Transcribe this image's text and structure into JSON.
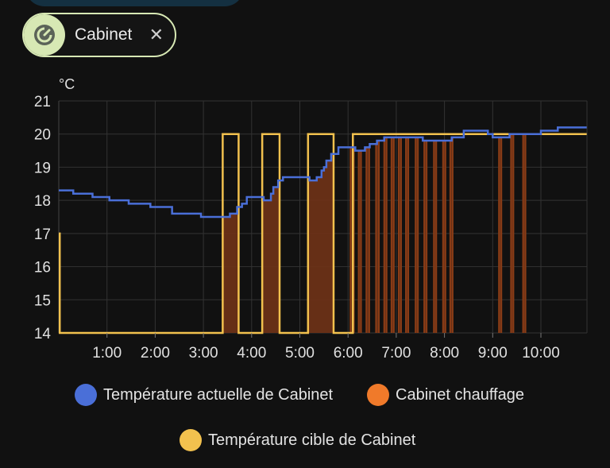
{
  "chip": {
    "label": "Cabinet",
    "close_symbol": "✕",
    "icon": "thermostat-icon",
    "accent": "#d7e8b4"
  },
  "chart_data": {
    "type": "line",
    "ylabel": "°C",
    "ylim": [
      14,
      21
    ],
    "xlim": [
      0,
      11
    ],
    "x_unit": "hours",
    "y_ticks": [
      "14",
      "15",
      "16",
      "17",
      "18",
      "19",
      "20",
      "21"
    ],
    "x_ticks": [
      {
        "t": 1,
        "label": "1:00"
      },
      {
        "t": 2,
        "label": "2:00"
      },
      {
        "t": 3,
        "label": "3:00"
      },
      {
        "t": 4,
        "label": "4:00"
      },
      {
        "t": 5,
        "label": "5:00"
      },
      {
        "t": 6,
        "label": "6:00"
      },
      {
        "t": 7,
        "label": "7:00"
      },
      {
        "t": 8,
        "label": "8:00"
      },
      {
        "t": 9,
        "label": "9:00"
      },
      {
        "t": 10,
        "label": "10:00"
      }
    ],
    "grid": true,
    "series": [
      {
        "name": "Température actuelle de Cabinet",
        "color": "#4a6fd8",
        "step": true,
        "points": [
          [
            0,
            18.3
          ],
          [
            0.3,
            18.2
          ],
          [
            0.7,
            18.1
          ],
          [
            1.05,
            18.0
          ],
          [
            1.45,
            17.9
          ],
          [
            1.9,
            17.8
          ],
          [
            2.35,
            17.6
          ],
          [
            2.95,
            17.5
          ],
          [
            3.55,
            17.6
          ],
          [
            3.7,
            17.8
          ],
          [
            3.8,
            17.9
          ],
          [
            3.9,
            18.1
          ],
          [
            4.25,
            18.0
          ],
          [
            4.4,
            18.2
          ],
          [
            4.45,
            18.4
          ],
          [
            4.55,
            18.6
          ],
          [
            4.65,
            18.7
          ],
          [
            5.2,
            18.6
          ],
          [
            5.35,
            18.7
          ],
          [
            5.45,
            18.9
          ],
          [
            5.5,
            19.0
          ],
          [
            5.55,
            19.2
          ],
          [
            5.65,
            19.4
          ],
          [
            5.8,
            19.6
          ],
          [
            6.15,
            19.5
          ],
          [
            6.35,
            19.6
          ],
          [
            6.45,
            19.7
          ],
          [
            6.6,
            19.8
          ],
          [
            6.75,
            19.9
          ],
          [
            7.55,
            19.8
          ],
          [
            8.15,
            19.9
          ],
          [
            8.4,
            20.1
          ],
          [
            8.9,
            20.0
          ],
          [
            9.0,
            19.9
          ],
          [
            9.35,
            20.0
          ],
          [
            10.0,
            20.1
          ],
          [
            10.35,
            20.2
          ],
          [
            10.95,
            20.2
          ]
        ]
      },
      {
        "name": "Cabinet chauffage",
        "color": "#f07a2a",
        "fill": "#6b3217",
        "intervals": [
          [
            3.4,
            3.73
          ],
          [
            4.22,
            4.58
          ],
          [
            5.17,
            5.7
          ],
          [
            6.05,
            6.12
          ],
          [
            6.22,
            6.27
          ],
          [
            6.38,
            6.44
          ],
          [
            6.58,
            6.64
          ],
          [
            6.75,
            6.8
          ],
          [
            6.9,
            6.95
          ],
          [
            7.05,
            7.1
          ],
          [
            7.2,
            7.25
          ],
          [
            7.4,
            7.45
          ],
          [
            7.58,
            7.63
          ],
          [
            7.78,
            7.83
          ],
          [
            7.97,
            8.02
          ],
          [
            8.12,
            8.17
          ],
          [
            9.13,
            9.18
          ],
          [
            9.38,
            9.43
          ],
          [
            9.63,
            9.68
          ]
        ]
      },
      {
        "name": "Température cible de Cabinet",
        "color": "#f2c14e",
        "step": true,
        "points": [
          [
            0,
            17
          ],
          [
            0.02,
            14
          ],
          [
            3.4,
            20
          ],
          [
            3.73,
            14
          ],
          [
            4.22,
            20
          ],
          [
            4.58,
            14
          ],
          [
            5.17,
            20
          ],
          [
            5.7,
            14
          ],
          [
            6.1,
            20
          ],
          [
            10.95,
            20
          ]
        ]
      }
    ],
    "legend_position": "bottom"
  },
  "legend": {
    "current_label": "Température actuelle de Cabinet",
    "heating_label": "Cabinet chauffage",
    "target_label": "Température cible de Cabinet"
  }
}
